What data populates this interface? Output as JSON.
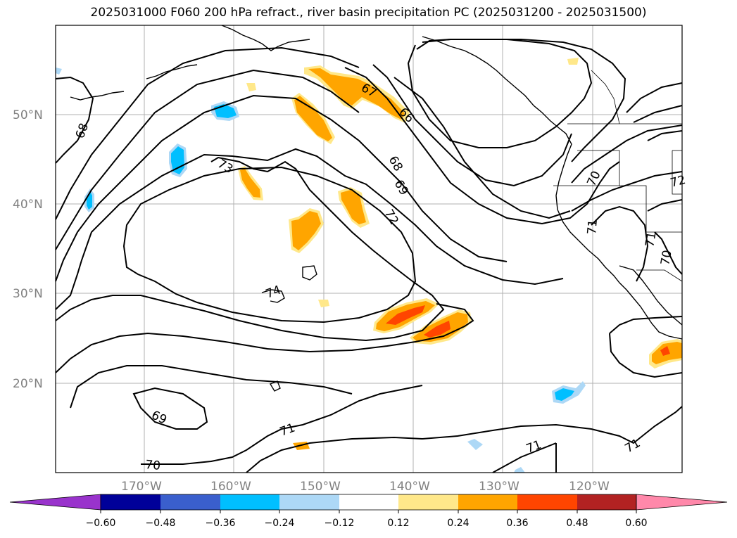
{
  "title": "2025031000 F060 200 hPa refract., river basin precipitation PC (2025031200 - 2025031500)",
  "latitude_labels": [
    "50°N",
    "40°N",
    "30°N",
    "20°N"
  ],
  "longitude_labels": [
    "170°W",
    "160°W",
    "150°W",
    "140°W",
    "130°W",
    "120°W"
  ],
  "contour_labels": [
    "68",
    "73",
    "67",
    "66",
    "68",
    "69",
    "72",
    "70",
    "72",
    "71",
    "71",
    "70",
    "74",
    "69",
    "70",
    "71",
    "71",
    "71"
  ],
  "colorbar": {
    "ticks": [
      "−0.60",
      "−0.48",
      "−0.36",
      "−0.24",
      "−0.12",
      "0.12",
      "0.24",
      "0.36",
      "0.48",
      "0.60"
    ],
    "colors": [
      "#9933cc",
      "#000099",
      "#3a5fcd",
      "#00bfff",
      "#add8f6",
      "#ffffff",
      "#ffe88a",
      "#ffa500",
      "#ff4500",
      "#b22222",
      "#ff88aa"
    ]
  },
  "colors": {
    "contour": "#000000",
    "grid": "#b0b0b0",
    "positive_orange": "#ffa500",
    "positive_red": "#ff4500",
    "positive_light": "#ffe88a",
    "negative_cyan": "#00bfff",
    "negative_light": "#add8f6"
  }
}
